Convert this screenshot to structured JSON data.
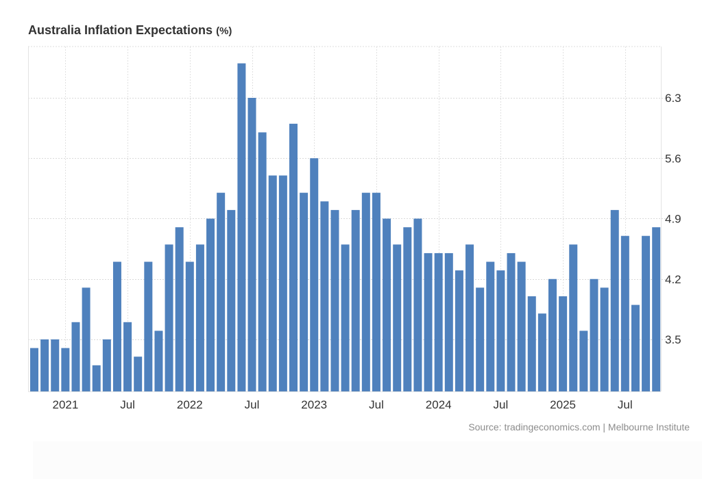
{
  "chart_data": {
    "type": "bar",
    "title": "Australia Inflation Expectations",
    "title_unit": "(%)",
    "source": "Source: tradingeconomics.com | Melbourne Institute",
    "xlabel": "",
    "ylabel": "",
    "ylim": [
      2.9,
      6.9
    ],
    "yticks": [
      3.5,
      4.2,
      4.9,
      5.6,
      6.3
    ],
    "ytick_labels": [
      "3.5",
      "4.2",
      "4.9",
      "5.6",
      "6.3"
    ],
    "xtick_labels": [
      {
        "label": "2021",
        "bar_index": 3
      },
      {
        "label": "Jul",
        "bar_index": 9
      },
      {
        "label": "2022",
        "bar_index": 15
      },
      {
        "label": "Jul",
        "bar_index": 21
      },
      {
        "label": "2023",
        "bar_index": 27
      },
      {
        "label": "Jul",
        "bar_index": 33
      },
      {
        "label": "2024",
        "bar_index": 39
      },
      {
        "label": "Jul",
        "bar_index": 45
      },
      {
        "label": "2025",
        "bar_index": 51
      },
      {
        "label": "Jul",
        "bar_index": 57
      }
    ],
    "grid": true,
    "bar_color": "#4f81bd",
    "values": [
      3.4,
      3.5,
      3.5,
      3.4,
      3.7,
      4.1,
      3.2,
      3.5,
      4.4,
      3.7,
      3.3,
      4.4,
      3.6,
      4.6,
      4.8,
      4.4,
      4.6,
      4.9,
      5.2,
      5.0,
      6.7,
      6.3,
      5.9,
      5.4,
      5.4,
      6.0,
      5.2,
      5.6,
      5.1,
      5.0,
      4.6,
      5.0,
      5.2,
      5.2,
      4.9,
      4.6,
      4.8,
      4.9,
      4.5,
      4.5,
      4.5,
      4.3,
      4.6,
      4.1,
      4.4,
      4.3,
      4.5,
      4.4,
      4.0,
      3.8,
      4.2,
      4.0,
      4.6,
      3.6,
      4.2,
      4.1,
      5.0,
      4.7,
      3.9,
      4.7,
      4.8
    ]
  }
}
